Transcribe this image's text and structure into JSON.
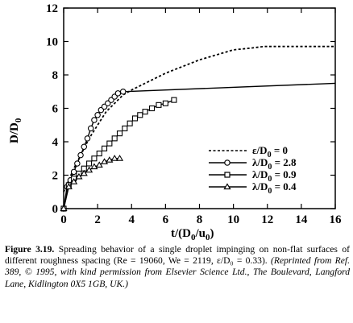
{
  "chart_data": {
    "type": "line",
    "xlabel": "t/(D_0/u_0)",
    "ylabel": "D/D_0",
    "xlim": [
      0,
      16
    ],
    "ylim": [
      0,
      12
    ],
    "xticks": [
      0,
      2,
      4,
      6,
      8,
      10,
      12,
      14,
      16
    ],
    "yticks": [
      0,
      2,
      4,
      6,
      8,
      10,
      12
    ],
    "grid": false,
    "legend_position": "lower-right",
    "series": [
      {
        "name": "ε/D_0 = 0",
        "style": "dashed",
        "marker": "none",
        "x": [
          0,
          0.3,
          0.6,
          1.0,
          1.5,
          2.0,
          2.5,
          3.0,
          3.5,
          4.0,
          5.0,
          6.0,
          7.0,
          8.0,
          9.0,
          10.0,
          11.0,
          11.8,
          13.0,
          14.0,
          16.0
        ],
        "y": [
          1.0,
          1.7,
          2.4,
          3.2,
          4.2,
          5.0,
          5.8,
          6.3,
          6.8,
          7.1,
          7.6,
          8.1,
          8.5,
          8.9,
          9.2,
          9.5,
          9.6,
          9.7,
          9.7,
          9.7,
          9.7
        ]
      },
      {
        "name": "λ/D_0 = 2.8",
        "style": "solid",
        "marker": "circle",
        "x": [
          0,
          0.2,
          0.4,
          0.6,
          0.8,
          1.0,
          1.2,
          1.4,
          1.6,
          1.8,
          2.0,
          2.2,
          2.4,
          2.6,
          2.8,
          3.0,
          3.2,
          3.5
        ],
        "y": [
          0.0,
          1.3,
          1.7,
          2.2,
          2.7,
          3.2,
          3.7,
          4.2,
          4.8,
          5.3,
          5.6,
          5.9,
          6.1,
          6.3,
          6.5,
          6.7,
          6.9,
          7.0
        ],
        "trend_x": [
          3.5,
          16.0
        ],
        "trend_y": [
          7.0,
          7.5
        ]
      },
      {
        "name": "λ/D_0 = 0.9",
        "style": "solid",
        "marker": "square",
        "x": [
          0,
          0.3,
          0.6,
          0.9,
          1.2,
          1.5,
          1.8,
          2.1,
          2.4,
          2.7,
          3.0,
          3.3,
          3.6,
          3.9,
          4.2,
          4.5,
          4.8,
          5.2,
          5.6,
          6.0,
          6.5
        ],
        "y": [
          0.0,
          1.4,
          1.8,
          2.1,
          2.4,
          2.7,
          3.0,
          3.3,
          3.6,
          3.9,
          4.2,
          4.5,
          4.8,
          5.1,
          5.4,
          5.6,
          5.8,
          6.0,
          6.2,
          6.3,
          6.5
        ]
      },
      {
        "name": "λ/D_0 = 0.4",
        "style": "solid",
        "marker": "triangle",
        "x": [
          0,
          0.3,
          0.6,
          0.9,
          1.2,
          1.5,
          1.8,
          2.1,
          2.4,
          2.7,
          3.0,
          3.3
        ],
        "y": [
          0.0,
          1.3,
          1.6,
          1.9,
          2.1,
          2.3,
          2.5,
          2.6,
          2.8,
          2.9,
          3.0,
          3.0
        ]
      }
    ]
  },
  "axes": {
    "x_title_main": "t/(D",
    "x_title_sub1": "0",
    "x_title_mid": "/u",
    "x_title_sub2": "0",
    "x_title_end": ")",
    "y_title_main": "D/D",
    "y_title_sub": "0"
  },
  "legend": [
    {
      "main": "ε/D",
      "sub": "0",
      "rest": " = 0"
    },
    {
      "main": "λ/D",
      "sub": "0",
      "rest": " = 2.8"
    },
    {
      "main": "λ/D",
      "sub": "0",
      "rest": " = 0.9"
    },
    {
      "main": "λ/D",
      "sub": "0",
      "rest": " = 0.4"
    }
  ],
  "caption": {
    "label": "Figure 3.19.",
    "text": " Spreading behavior of a single droplet impinging on non-flat surfaces of different roughness spacing (Re = 19060, We = 2119, ε/D₀ = 0.33).",
    "credit": " (Reprinted from Ref. 389, © 1995, with kind permission from Elsevier Science Ltd., The Boulevard, Langford Lane, Kidlington 0X5 1GB, UK.)"
  }
}
